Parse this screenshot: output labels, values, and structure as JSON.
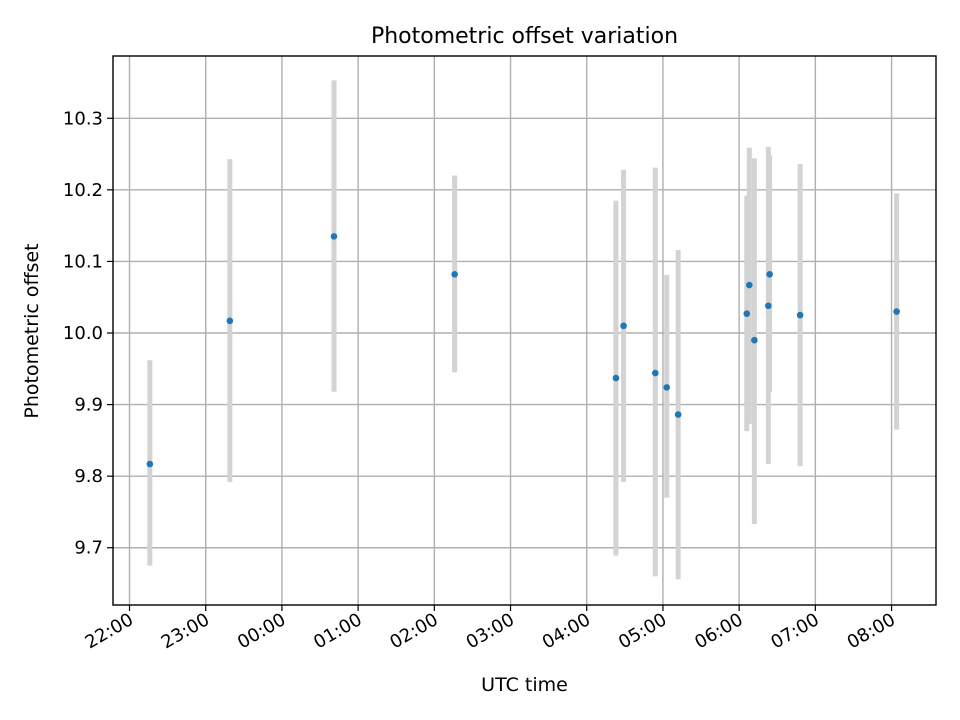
{
  "chart_data": {
    "type": "scatter",
    "title": "Photometric offset variation",
    "xlabel": "UTC time",
    "ylabel": "Photometric offset",
    "x_axis_type": "time",
    "xlim": [
      "21:47",
      "08:35"
    ],
    "ylim": [
      9.62,
      10.387
    ],
    "x_ticks": [
      "22:00",
      "23:00",
      "00:00",
      "01:00",
      "02:00",
      "03:00",
      "04:00",
      "05:00",
      "06:00",
      "07:00",
      "08:00"
    ],
    "y_ticks": [
      "9.7",
      "9.8",
      "9.9",
      "10.0",
      "10.1",
      "10.2",
      "10.3"
    ],
    "grid": true,
    "legend": "none",
    "errorbar_color": "#d3d3d3",
    "marker_color": "#1f77b4",
    "points": [
      {
        "x": "22:16",
        "y": 9.817,
        "ylow": 9.675,
        "yhigh": 9.962
      },
      {
        "x": "23:19",
        "y": 10.017,
        "ylow": 9.792,
        "yhigh": 10.243
      },
      {
        "x": "00:41",
        "y": 10.135,
        "ylow": 9.918,
        "yhigh": 10.353
      },
      {
        "x": "02:16",
        "y": 10.082,
        "ylow": 9.945,
        "yhigh": 10.22
      },
      {
        "x": "04:23",
        "y": 9.937,
        "ylow": 9.689,
        "yhigh": 10.185
      },
      {
        "x": "04:29",
        "y": 10.01,
        "ylow": 9.792,
        "yhigh": 10.228
      },
      {
        "x": "04:54",
        "y": 9.944,
        "ylow": 9.66,
        "yhigh": 10.231
      },
      {
        "x": "05:03",
        "y": 9.924,
        "ylow": 9.77,
        "yhigh": 10.081
      },
      {
        "x": "05:12",
        "y": 9.886,
        "ylow": 9.656,
        "yhigh": 10.116
      },
      {
        "x": "06:06",
        "y": 10.027,
        "ylow": 9.863,
        "yhigh": 10.192
      },
      {
        "x": "06:08",
        "y": 10.067,
        "ylow": 9.873,
        "yhigh": 10.259
      },
      {
        "x": "06:12",
        "y": 9.99,
        "ylow": 9.733,
        "yhigh": 10.244
      },
      {
        "x": "06:23",
        "y": 10.038,
        "ylow": 9.817,
        "yhigh": 10.26
      },
      {
        "x": "06:24",
        "y": 10.082,
        "ylow": 9.917,
        "yhigh": 10.248
      },
      {
        "x": "06:48",
        "y": 10.025,
        "ylow": 9.814,
        "yhigh": 10.236
      },
      {
        "x": "08:04",
        "y": 10.03,
        "ylow": 9.865,
        "yhigh": 10.195
      }
    ]
  }
}
